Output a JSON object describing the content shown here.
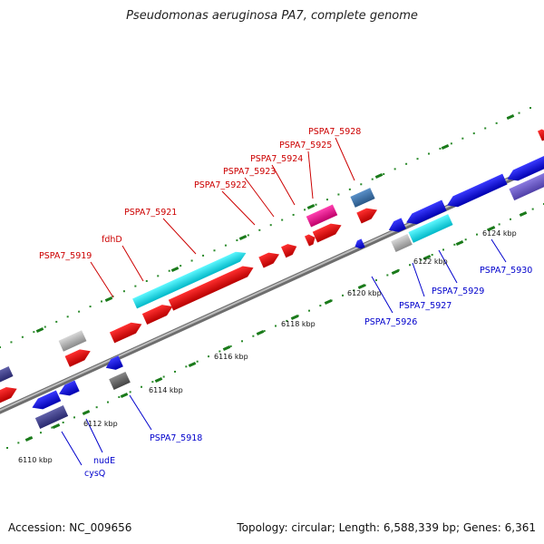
{
  "title": "Pseudomonas aeruginosa PA7, complete genome",
  "footer": {
    "accession": "Accession: NC_009656",
    "topology": "Topology: circular; Length: 6,588,339 bp; Genes: 6,361"
  },
  "colors": {
    "forward_label": "#cc0000",
    "reverse_label": "#0000cc",
    "tick": "#1a7a1a",
    "dot": "#2a8a2a",
    "backbone": "#777777"
  },
  "scale_labels": [
    {
      "text": "6110 kbp",
      "kbp": 6110
    },
    {
      "text": "6112 kbp",
      "kbp": 6112
    },
    {
      "text": "6114 kbp",
      "kbp": 6114
    },
    {
      "text": "6116 kbp",
      "kbp": 6116
    },
    {
      "text": "6118 kbp",
      "kbp": 6118
    },
    {
      "text": "6120 kbp",
      "kbp": 6120
    },
    {
      "text": "6122 kbp",
      "kbp": 6122
    },
    {
      "text": "6124 kbp",
      "kbp": 6124
    }
  ],
  "forward_labels": [
    {
      "text": "PSPA7_5919"
    },
    {
      "text": "fdhD"
    },
    {
      "text": "PSPA7_5921"
    },
    {
      "text": "PSPA7_5922"
    },
    {
      "text": "PSPA7_5923"
    },
    {
      "text": "PSPA7_5924"
    },
    {
      "text": "PSPA7_5925"
    },
    {
      "text": "PSPA7_5928"
    }
  ],
  "reverse_labels": [
    {
      "text": "cysQ"
    },
    {
      "text": "nudE"
    },
    {
      "text": "PSPA7_5918"
    },
    {
      "text": "PSPA7_5926"
    },
    {
      "text": "PSPA7_5927"
    },
    {
      "text": "PSPA7_5929"
    },
    {
      "text": "PSPA7_5930"
    }
  ]
}
